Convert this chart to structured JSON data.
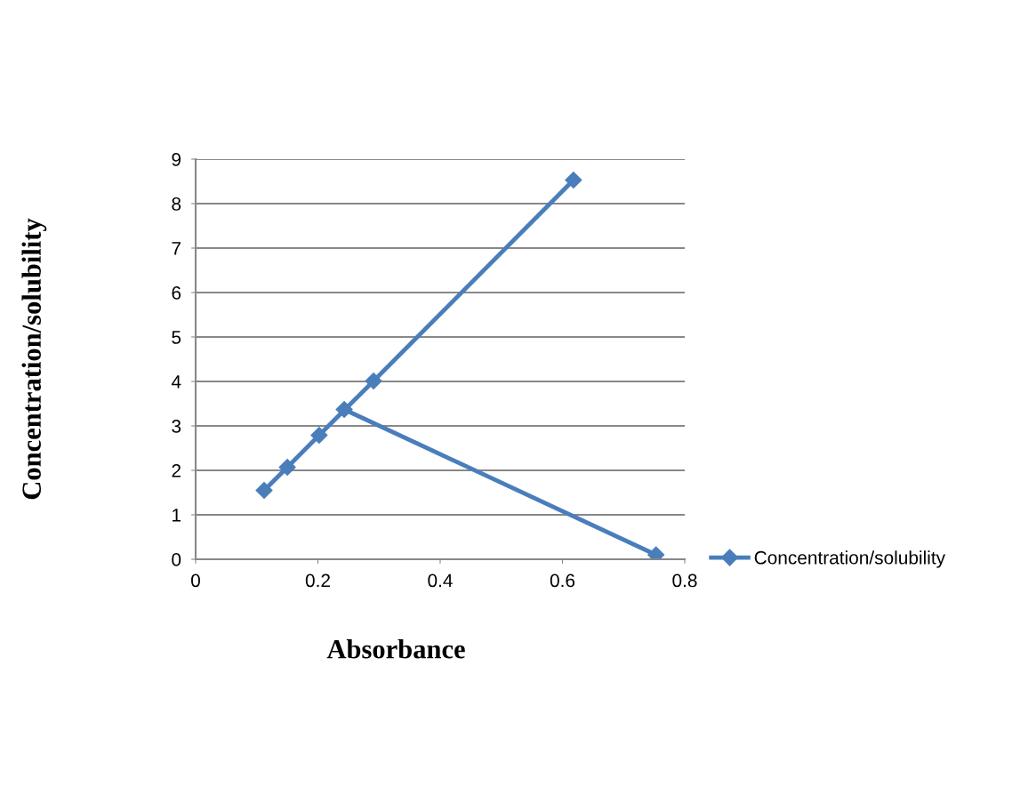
{
  "chart_data": {
    "type": "line",
    "xlabel": "Absorbance",
    "ylabel": "Concentration/solubility",
    "x": [
      0.112,
      0.15,
      0.202,
      0.291,
      0.618,
      null,
      0.243,
      0.753
    ],
    "series": [
      {
        "name": "Concentration/solubility",
        "color": "#4a7ebb",
        "values": [
          1.55,
          2.07,
          2.79,
          4.01,
          8.53,
          null,
          3.37,
          0.1
        ]
      }
    ],
    "xlim": [
      0,
      0.8
    ],
    "xticks": [
      0,
      0.2,
      0.4,
      0.6,
      0.8
    ],
    "ylim": [
      0,
      9
    ],
    "yticks": [
      0,
      1,
      2,
      3,
      4,
      5,
      6,
      7,
      8,
      9
    ],
    "grid": "y",
    "legend": "right",
    "marker": "diamond",
    "line_style": "solid"
  }
}
